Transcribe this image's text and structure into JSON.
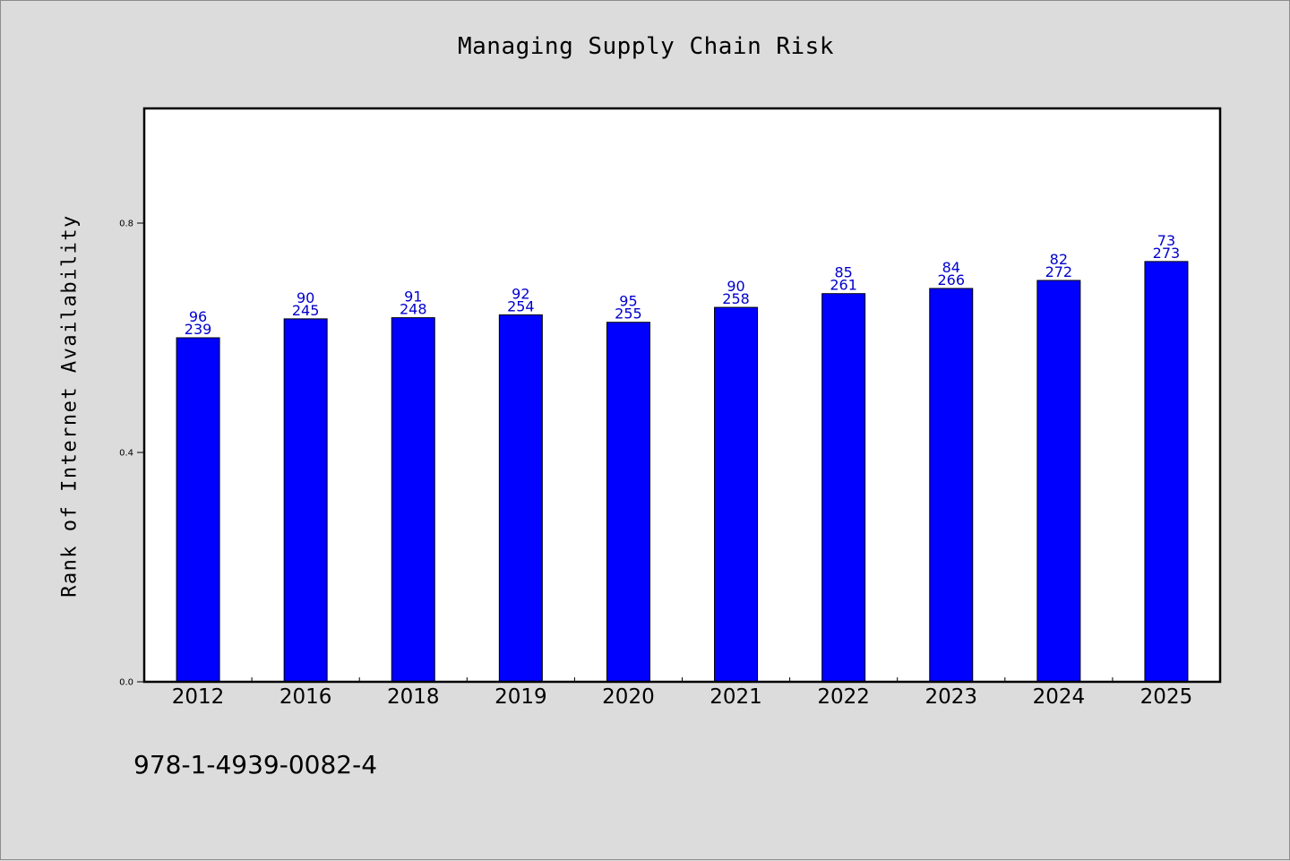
{
  "chart_data": {
    "type": "bar",
    "title": "Managing Supply Chain Risk",
    "xlabel": "",
    "ylabel": "Rank of Internet Availability",
    "categories": [
      "2012",
      "2016",
      "2018",
      "2019",
      "2020",
      "2021",
      "2022",
      "2023",
      "2024",
      "2025"
    ],
    "values": [
      0.6,
      0.633,
      0.635,
      0.64,
      0.627,
      0.653,
      0.677,
      0.686,
      0.7,
      0.733
    ],
    "annotations_top": [
      "96",
      "90",
      "91",
      "92",
      "95",
      "90",
      "85",
      "84",
      "82",
      "73"
    ],
    "annotations_bottom": [
      "239",
      "245",
      "248",
      "254",
      "255",
      "258",
      "261",
      "266",
      "272",
      "273"
    ],
    "yticks": [
      "0.0",
      "0.4",
      "0.8"
    ],
    "ylim": [
      0,
      1.0
    ],
    "grid": false,
    "bar_color": "#0000ff",
    "label_color": "#0000cd"
  },
  "footer": {
    "code": "978-1-4939-0082-4"
  }
}
